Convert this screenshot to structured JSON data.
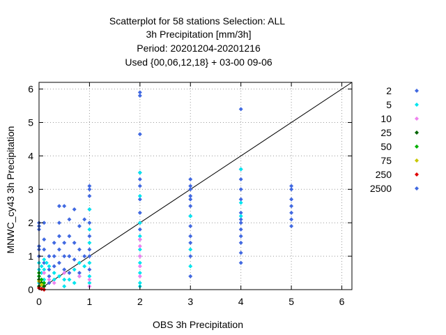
{
  "chart_data": {
    "type": "scatter",
    "title_lines": [
      "Scatterplot for   58 stations Selection: ALL",
      "3h Precipitation [mm/3h]",
      "Period: 20201204-20201216",
      "Used {00,06,12,18} + 03-00 09-06"
    ],
    "xlabel": "OBS 3h Precipitation",
    "ylabel": "MNWC_cy43 3h Precipitation",
    "xlim": [
      0,
      6.2
    ],
    "ylim": [
      0,
      6.2
    ],
    "xticks": [
      "0",
      "1",
      "2",
      "3",
      "4",
      "5",
      "6"
    ],
    "yticks": [
      "0",
      "1",
      "2",
      "3",
      "4",
      "5",
      "6"
    ],
    "grid": true,
    "diagonal_line": true,
    "legend_position": "right",
    "series": [
      {
        "name": "2",
        "color": "#4169e1",
        "points": [
          [
            0.0,
            2.0
          ],
          [
            0.0,
            1.9
          ],
          [
            0.0,
            1.8
          ],
          [
            0.0,
            1.3
          ],
          [
            0.0,
            1.2
          ],
          [
            0.0,
            1.0
          ],
          [
            0.1,
            2.0
          ],
          [
            0.1,
            1.5
          ],
          [
            0.1,
            1.2
          ],
          [
            0.1,
            0.8
          ],
          [
            0.2,
            1.0
          ],
          [
            0.2,
            0.6
          ],
          [
            0.2,
            0.4
          ],
          [
            0.2,
            0.2
          ],
          [
            0.3,
            1.4
          ],
          [
            0.3,
            1.0
          ],
          [
            0.3,
            0.7
          ],
          [
            0.4,
            2.5
          ],
          [
            0.4,
            2.0
          ],
          [
            0.4,
            1.6
          ],
          [
            0.4,
            1.2
          ],
          [
            0.4,
            0.8
          ],
          [
            0.5,
            2.5
          ],
          [
            0.5,
            1.4
          ],
          [
            0.5,
            1.0
          ],
          [
            0.5,
            0.6
          ],
          [
            0.6,
            2.1
          ],
          [
            0.6,
            1.6
          ],
          [
            0.6,
            1.0
          ],
          [
            0.6,
            0.5
          ],
          [
            0.7,
            2.4
          ],
          [
            0.7,
            1.4
          ],
          [
            0.7,
            0.9
          ],
          [
            0.8,
            1.9
          ],
          [
            0.8,
            1.2
          ],
          [
            0.8,
            0.5
          ],
          [
            0.9,
            2.1
          ],
          [
            0.9,
            1.0
          ],
          [
            1.0,
            3.1
          ],
          [
            1.0,
            3.0
          ],
          [
            1.0,
            2.8
          ],
          [
            1.0,
            2.4
          ],
          [
            1.0,
            2.0
          ],
          [
            1.0,
            1.6
          ],
          [
            1.0,
            1.2
          ],
          [
            1.0,
            1.0
          ],
          [
            1.0,
            0.6
          ],
          [
            2.0,
            5.9
          ],
          [
            2.0,
            5.8
          ],
          [
            2.0,
            4.65
          ],
          [
            2.0,
            3.5
          ],
          [
            2.0,
            3.3
          ],
          [
            2.0,
            3.1
          ],
          [
            2.0,
            2.7
          ],
          [
            2.0,
            2.3
          ],
          [
            2.0,
            2.0
          ],
          [
            2.0,
            1.8
          ],
          [
            2.0,
            1.5
          ],
          [
            2.0,
            1.0
          ],
          [
            3.0,
            3.3
          ],
          [
            3.0,
            3.1
          ],
          [
            3.0,
            3.0
          ],
          [
            3.0,
            2.8
          ],
          [
            3.0,
            2.7
          ],
          [
            3.0,
            2.5
          ],
          [
            3.0,
            2.2
          ],
          [
            3.0,
            1.9
          ],
          [
            3.0,
            1.6
          ],
          [
            3.0,
            1.4
          ],
          [
            3.0,
            1.0
          ],
          [
            3.0,
            0.4
          ],
          [
            4.0,
            5.4
          ],
          [
            4.0,
            3.6
          ],
          [
            4.0,
            3.3
          ],
          [
            4.0,
            3.0
          ],
          [
            4.0,
            2.7
          ],
          [
            4.0,
            2.3
          ],
          [
            4.0,
            2.1
          ],
          [
            4.0,
            2.0
          ],
          [
            4.0,
            1.8
          ],
          [
            4.0,
            1.6
          ],
          [
            4.0,
            1.4
          ],
          [
            4.0,
            1.1
          ],
          [
            4.0,
            0.8
          ],
          [
            5.0,
            3.1
          ],
          [
            5.0,
            3.0
          ],
          [
            5.0,
            2.7
          ],
          [
            5.0,
            2.5
          ],
          [
            5.0,
            2.3
          ],
          [
            5.0,
            2.1
          ],
          [
            5.0,
            1.9
          ]
        ]
      },
      {
        "name": "5",
        "color": "#00e5ee",
        "points": [
          [
            0.0,
            0.8
          ],
          [
            0.0,
            0.6
          ],
          [
            0.0,
            0.4
          ],
          [
            0.0,
            0.2
          ],
          [
            0.05,
            0.7
          ],
          [
            0.05,
            0.5
          ],
          [
            0.1,
            0.9
          ],
          [
            0.1,
            0.6
          ],
          [
            0.1,
            0.3
          ],
          [
            0.15,
            0.8
          ],
          [
            0.2,
            0.7
          ],
          [
            0.3,
            0.5
          ],
          [
            0.3,
            0.3
          ],
          [
            0.4,
            0.4
          ],
          [
            0.5,
            0.3
          ],
          [
            0.5,
            0.1
          ],
          [
            0.6,
            0.3
          ],
          [
            0.7,
            0.6
          ],
          [
            0.7,
            0.2
          ],
          [
            0.8,
            0.8
          ],
          [
            0.8,
            0.4
          ],
          [
            0.9,
            0.7
          ],
          [
            1.0,
            2.4
          ],
          [
            1.0,
            1.8
          ],
          [
            1.0,
            1.4
          ],
          [
            1.0,
            0.8
          ],
          [
            1.0,
            0.4
          ],
          [
            1.0,
            0.2
          ],
          [
            2.0,
            3.5
          ],
          [
            2.0,
            2.8
          ],
          [
            2.0,
            2.0
          ],
          [
            2.0,
            1.6
          ],
          [
            2.0,
            1.2
          ],
          [
            2.0,
            0.8
          ],
          [
            2.0,
            0.5
          ],
          [
            2.0,
            0.2
          ],
          [
            2.0,
            0.1
          ],
          [
            3.0,
            2.2
          ],
          [
            3.0,
            1.2
          ],
          [
            3.0,
            0.7
          ],
          [
            4.0,
            3.6
          ],
          [
            4.0,
            2.6
          ],
          [
            4.0,
            2.2
          ]
        ]
      },
      {
        "name": "10",
        "color": "#ee82ee",
        "points": [
          [
            0.1,
            0.5
          ],
          [
            0.2,
            0.3
          ],
          [
            0.3,
            0.2
          ],
          [
            0.5,
            0.5
          ],
          [
            0.8,
            0.4
          ],
          [
            1.0,
            0.3
          ],
          [
            1.0,
            0.1
          ],
          [
            2.0,
            1.5
          ],
          [
            2.0,
            1.3
          ],
          [
            2.0,
            1.0
          ],
          [
            2.0,
            0.7
          ],
          [
            2.0,
            0.4
          ]
        ]
      },
      {
        "name": "25",
        "color": "#006400",
        "points": [
          [
            0.0,
            0.3
          ],
          [
            0.0,
            0.1
          ],
          [
            0.05,
            0.2
          ],
          [
            0.1,
            0.1
          ]
        ]
      },
      {
        "name": "50",
        "color": "#00b000",
        "points": [
          [
            0.0,
            0.5
          ],
          [
            0.0,
            0.4
          ],
          [
            0.05,
            0.3
          ],
          [
            0.1,
            0.2
          ]
        ]
      },
      {
        "name": "75",
        "color": "#c8c800",
        "points": [
          [
            0.0,
            0.25
          ],
          [
            0.05,
            0.15
          ]
        ]
      },
      {
        "name": "250",
        "color": "#e00000",
        "points": [
          [
            0.0,
            0.05
          ],
          [
            0.05,
            0.02
          ],
          [
            0.1,
            0.0
          ]
        ]
      },
      {
        "name": "2500",
        "color": "#4169e1",
        "points": []
      }
    ]
  }
}
